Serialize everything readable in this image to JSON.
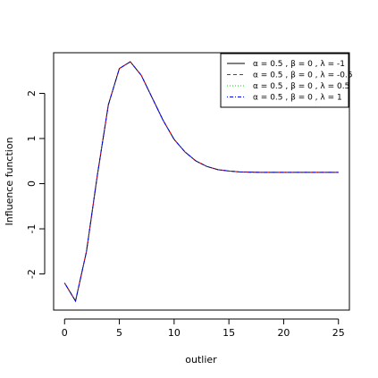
{
  "chart_data": {
    "type": "line",
    "xlabel": "outlier",
    "ylabel": "Influence function",
    "xlim": [
      -1,
      26
    ],
    "ylim": [
      -2.8,
      2.9
    ],
    "xticks": [
      0,
      5,
      10,
      15,
      20,
      25
    ],
    "yticks": [
      -2,
      -1,
      0,
      1,
      2
    ],
    "x": [
      0,
      1,
      2,
      3,
      4,
      5,
      6,
      7,
      8,
      9,
      10,
      11,
      12,
      13,
      14,
      15,
      16,
      17,
      18,
      19,
      20,
      21,
      22,
      23,
      24,
      25
    ],
    "series": [
      {
        "name": "α = 0.5 ,  β = 0 ,  λ = -1",
        "color": "#000000",
        "dash": "solid",
        "values": [
          -2.2,
          -2.6,
          -1.5,
          0.2,
          1.75,
          2.55,
          2.7,
          2.4,
          1.9,
          1.4,
          0.98,
          0.7,
          0.5,
          0.38,
          0.31,
          0.28,
          0.26,
          0.255,
          0.25,
          0.25,
          0.25,
          0.25,
          0.25,
          0.25,
          0.25,
          0.25
        ]
      },
      {
        "name": "α = 0.5 ,  β = 0 ,  λ = -0.5",
        "color": "#ff0000",
        "dash": "dashed",
        "values": [
          -2.2,
          -2.6,
          -1.5,
          0.2,
          1.75,
          2.55,
          2.7,
          2.4,
          1.9,
          1.4,
          0.98,
          0.7,
          0.5,
          0.38,
          0.31,
          0.28,
          0.26,
          0.255,
          0.25,
          0.25,
          0.25,
          0.25,
          0.25,
          0.25,
          0.25,
          0.25
        ]
      },
      {
        "name": "α = 0.5 ,  β = 0 ,  λ = 0.5",
        "color": "#00cc00",
        "dash": "dotted",
        "values": [
          -2.2,
          -2.6,
          -1.5,
          0.2,
          1.75,
          2.55,
          2.7,
          2.4,
          1.9,
          1.4,
          0.98,
          0.7,
          0.5,
          0.38,
          0.31,
          0.28,
          0.26,
          0.255,
          0.25,
          0.25,
          0.25,
          0.25,
          0.25,
          0.25,
          0.25,
          0.25
        ]
      },
      {
        "name": "α = 0.5 ,  β = 0 ,  λ = 1",
        "color": "#0000ff",
        "dash": "dotdash",
        "values": [
          -2.2,
          -2.6,
          -1.5,
          0.2,
          1.75,
          2.55,
          2.7,
          2.4,
          1.9,
          1.4,
          0.98,
          0.7,
          0.5,
          0.38,
          0.31,
          0.28,
          0.26,
          0.255,
          0.25,
          0.25,
          0.25,
          0.25,
          0.25,
          0.25,
          0.25,
          0.25
        ]
      }
    ],
    "legend": "top-right",
    "grid": false
  }
}
